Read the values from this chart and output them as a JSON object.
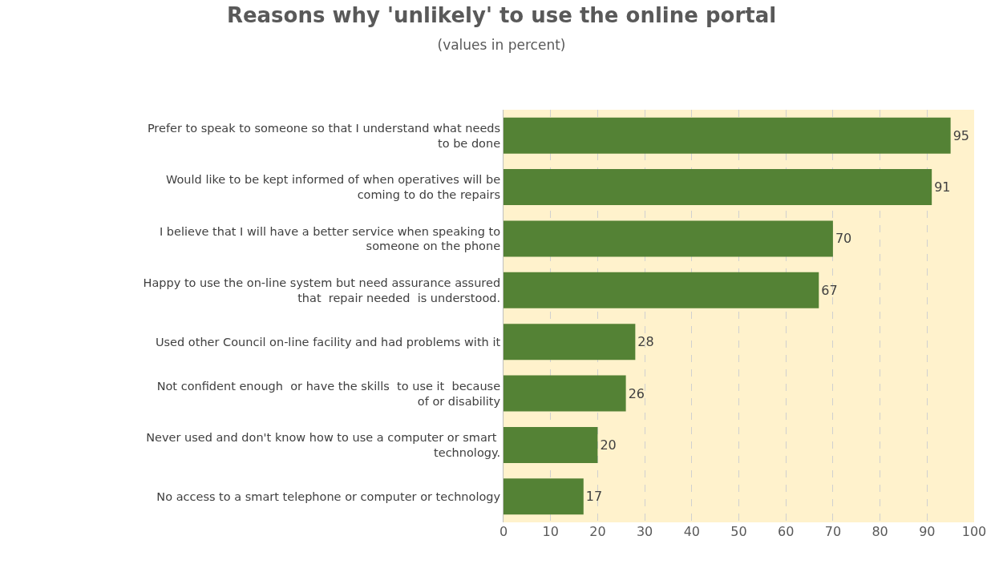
{
  "chart_data": {
    "type": "bar",
    "orientation": "horizontal",
    "title": "Reasons why 'unlikely' to use the online portal",
    "subtitle": "(values in percent)",
    "categories": [
      "Prefer to speak to someone so that I understand what needs to be done",
      "Would like to be kept informed of when operatives will be coming to do the repairs",
      "I believe that I will have a better service when speaking to someone on the phone",
      "Happy to use the on-line system but need assurance assured that  repair needed  is understood.",
      "Used other Council on-line facility and had problems with it",
      "Not confident enough  or have the skills  to use it  because of or disability",
      "Never used and don't know how to use a computer or smart  technology.",
      "No access to a smart telephone or computer or technology"
    ],
    "values": [
      95,
      91,
      70,
      67,
      28,
      26,
      20,
      17
    ],
    "color": "#548235",
    "data_labels": true,
    "grid": "x",
    "xlim": [
      0,
      100
    ],
    "xticks": [
      0,
      10,
      20,
      30,
      40,
      50,
      60,
      70,
      80,
      90,
      100
    ]
  }
}
